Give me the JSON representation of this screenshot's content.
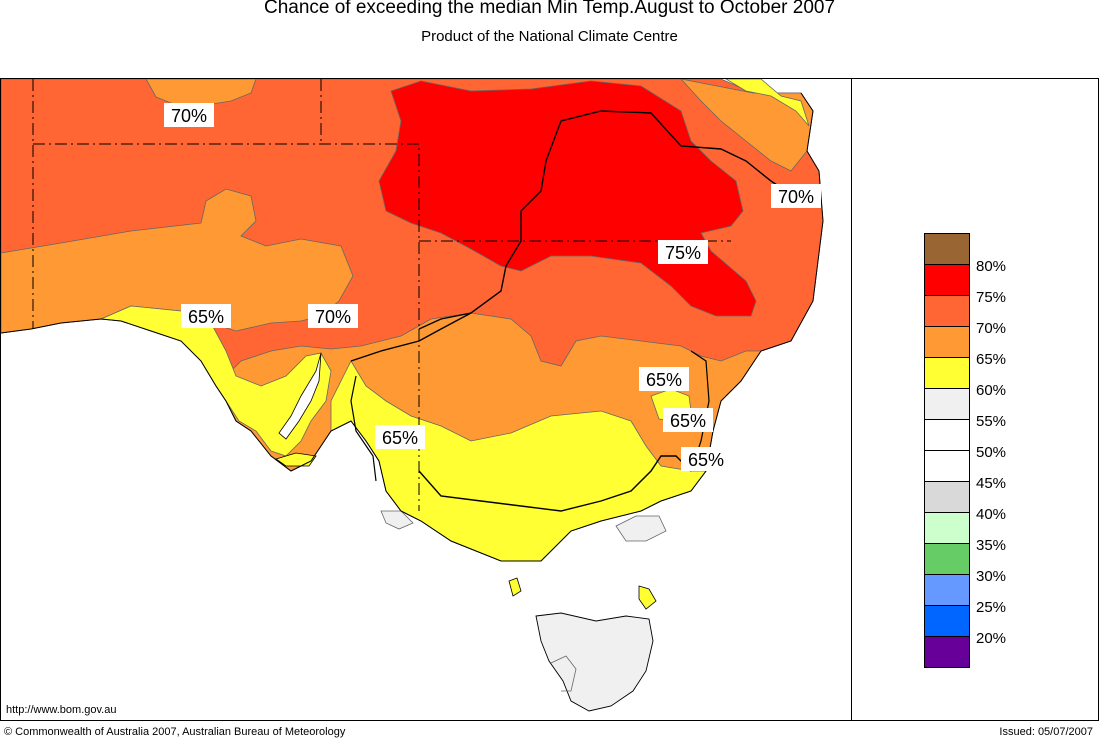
{
  "header": {
    "title": "Chance of exceeding the median Min Temp.August to October 2007",
    "subtitle": "Product of the National Climate Centre"
  },
  "legend": {
    "items": [
      {
        "label": "",
        "color": "#996633"
      },
      {
        "label": "80%",
        "color": "#ff0000"
      },
      {
        "label": "75%",
        "color": "#ff6633"
      },
      {
        "label": "70%",
        "color": "#ff9933"
      },
      {
        "label": "65%",
        "color": "#ffff33"
      },
      {
        "label": "60%",
        "color": "#f0f0f0"
      },
      {
        "label": "55%",
        "color": "#ffffff"
      },
      {
        "label": "50%",
        "color": "#ffffff"
      },
      {
        "label": "45%",
        "color": "#d9d9d9"
      },
      {
        "label": "40%",
        "color": "#ccffcc"
      },
      {
        "label": "35%",
        "color": "#66cc66"
      },
      {
        "label": "30%",
        "color": "#6699ff"
      },
      {
        "label": "25%",
        "color": "#0066ff"
      },
      {
        "label": "20%",
        "color": "#660099"
      }
    ]
  },
  "map_labels": {
    "l1": "70%",
    "l2": "70%",
    "l3": "75%",
    "l4": "65%",
    "l5": "70%",
    "l6": "65%",
    "l7": "65%",
    "l8": "65%",
    "l9": "65%"
  },
  "footer": {
    "url": "http://www.bom.gov.au",
    "copyright": "© Commonwealth of Australia 2007, Australian Bureau of Meteorology",
    "issued": "Issued: 05/07/2007"
  }
}
